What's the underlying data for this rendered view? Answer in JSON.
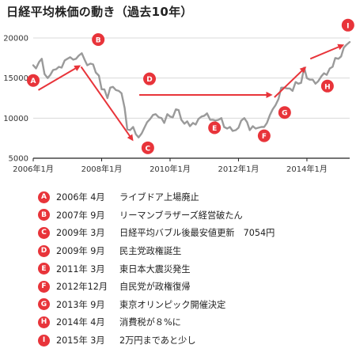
{
  "title": "日経平均株価の動き（過去10年）",
  "colors": {
    "line": "#9a9a9a",
    "accent": "#e8343a",
    "grid": "#d8d8d8",
    "axis": "#222222"
  },
  "chart_data": {
    "type": "line",
    "title": "日経平均株価の動き（過去10年）",
    "ylim": [
      5000,
      20000
    ],
    "yticks": [
      5000,
      10000,
      15000,
      20000
    ],
    "xlim": [
      2006.0,
      2015.25
    ],
    "xticks": [
      {
        "value": 2006.0,
        "label": "2006年1月"
      },
      {
        "value": 2008.0,
        "label": "2008年1月"
      },
      {
        "value": 2010.0,
        "label": "2010年1月"
      },
      {
        "value": 2012.0,
        "label": "2012年1月"
      },
      {
        "value": 2014.0,
        "label": "2014年1月"
      }
    ],
    "grid": true,
    "series": [
      {
        "x": [
          2006.0,
          2006.08,
          2006.17,
          2006.25,
          2006.33,
          2006.42,
          2006.5,
          2006.58,
          2006.67,
          2006.75,
          2006.83,
          2006.92,
          2007.0,
          2007.08,
          2007.17,
          2007.25,
          2007.33,
          2007.42,
          2007.5,
          2007.58,
          2007.67,
          2007.75,
          2007.83,
          2007.92,
          2008.0,
          2008.08,
          2008.17,
          2008.25,
          2008.33,
          2008.42,
          2008.5,
          2008.58,
          2008.67,
          2008.75,
          2008.83,
          2008.92,
          2009.0,
          2009.08,
          2009.17,
          2009.25,
          2009.33,
          2009.42,
          2009.5,
          2009.58,
          2009.67,
          2009.75,
          2009.83,
          2009.92,
          2010.0,
          2010.08,
          2010.17,
          2010.25,
          2010.33,
          2010.42,
          2010.5,
          2010.58,
          2010.67,
          2010.75,
          2010.83,
          2010.92,
          2011.0,
          2011.08,
          2011.17,
          2011.25,
          2011.33,
          2011.42,
          2011.5,
          2011.58,
          2011.67,
          2011.75,
          2011.83,
          2011.92,
          2012.0,
          2012.08,
          2012.17,
          2012.25,
          2012.33,
          2012.42,
          2012.5,
          2012.58,
          2012.67,
          2012.75,
          2012.83,
          2012.92,
          2013.0,
          2013.08,
          2013.17,
          2013.25,
          2013.33,
          2013.42,
          2013.5,
          2013.58,
          2013.67,
          2013.75,
          2013.83,
          2013.92,
          2014.0,
          2014.08,
          2014.17,
          2014.25,
          2014.33,
          2014.42,
          2014.5,
          2014.58,
          2014.67,
          2014.75,
          2014.83,
          2014.92,
          2015.0,
          2015.08,
          2015.17,
          2015.25
        ],
        "y": [
          16600,
          16200,
          17000,
          17400,
          15500,
          15000,
          15400,
          16000,
          16100,
          16400,
          16300,
          17200,
          17400,
          17600,
          17300,
          17400,
          17800,
          18100,
          17300,
          16600,
          16800,
          16700,
          15700,
          15300,
          13600,
          13600,
          12500,
          13800,
          13900,
          13500,
          13400,
          13100,
          11300,
          8600,
          8500,
          8900,
          8000,
          7600,
          8100,
          8800,
          9500,
          9900,
          10400,
          10500,
          10100,
          10000,
          9400,
          10500,
          10200,
          10100,
          11100,
          11000,
          9800,
          9300,
          9600,
          9000,
          9400,
          9200,
          9900,
          10200,
          10300,
          10600,
          9800,
          9800,
          9700,
          9800,
          10000,
          8900,
          8700,
          8900,
          8400,
          8500,
          8800,
          9700,
          10000,
          9500,
          8500,
          9000,
          8700,
          8800,
          8900,
          8900,
          9400,
          10400,
          11100,
          11600,
          12400,
          13800,
          13800,
          13700,
          13700,
          13400,
          14500,
          14300,
          14400,
          16300,
          15000,
          14800,
          14800,
          14300,
          14600,
          15200,
          15600,
          15400,
          16200,
          16400,
          17500,
          17400,
          17700,
          18800,
          19200,
          19500
        ]
      }
    ],
    "events": [
      {
        "id": "A",
        "date": "2006年 4月",
        "text": "ライブドア上場廃止"
      },
      {
        "id": "B",
        "date": "2007年 9月",
        "text": "リーマンブラザーズ経営破たん"
      },
      {
        "id": "C",
        "date": "2009年 3月",
        "text": "日経平均バブル後最安値更新　7054円"
      },
      {
        "id": "D",
        "date": "2009年 9月",
        "text": "民主党政権誕生"
      },
      {
        "id": "E",
        "date": "2011年 3月",
        "text": "東日本大震災発生"
      },
      {
        "id": "F",
        "date": "2012年12月",
        "text": "自民党が政権復帰"
      },
      {
        "id": "G",
        "date": "2013年 9月",
        "text": "東京オリンピック開催決定"
      },
      {
        "id": "H",
        "date": "2014年 4月",
        "text": "消費税が８%に"
      },
      {
        "id": "I",
        "date": "2015年 3月",
        "text": "2万円まであと少し"
      }
    ]
  }
}
